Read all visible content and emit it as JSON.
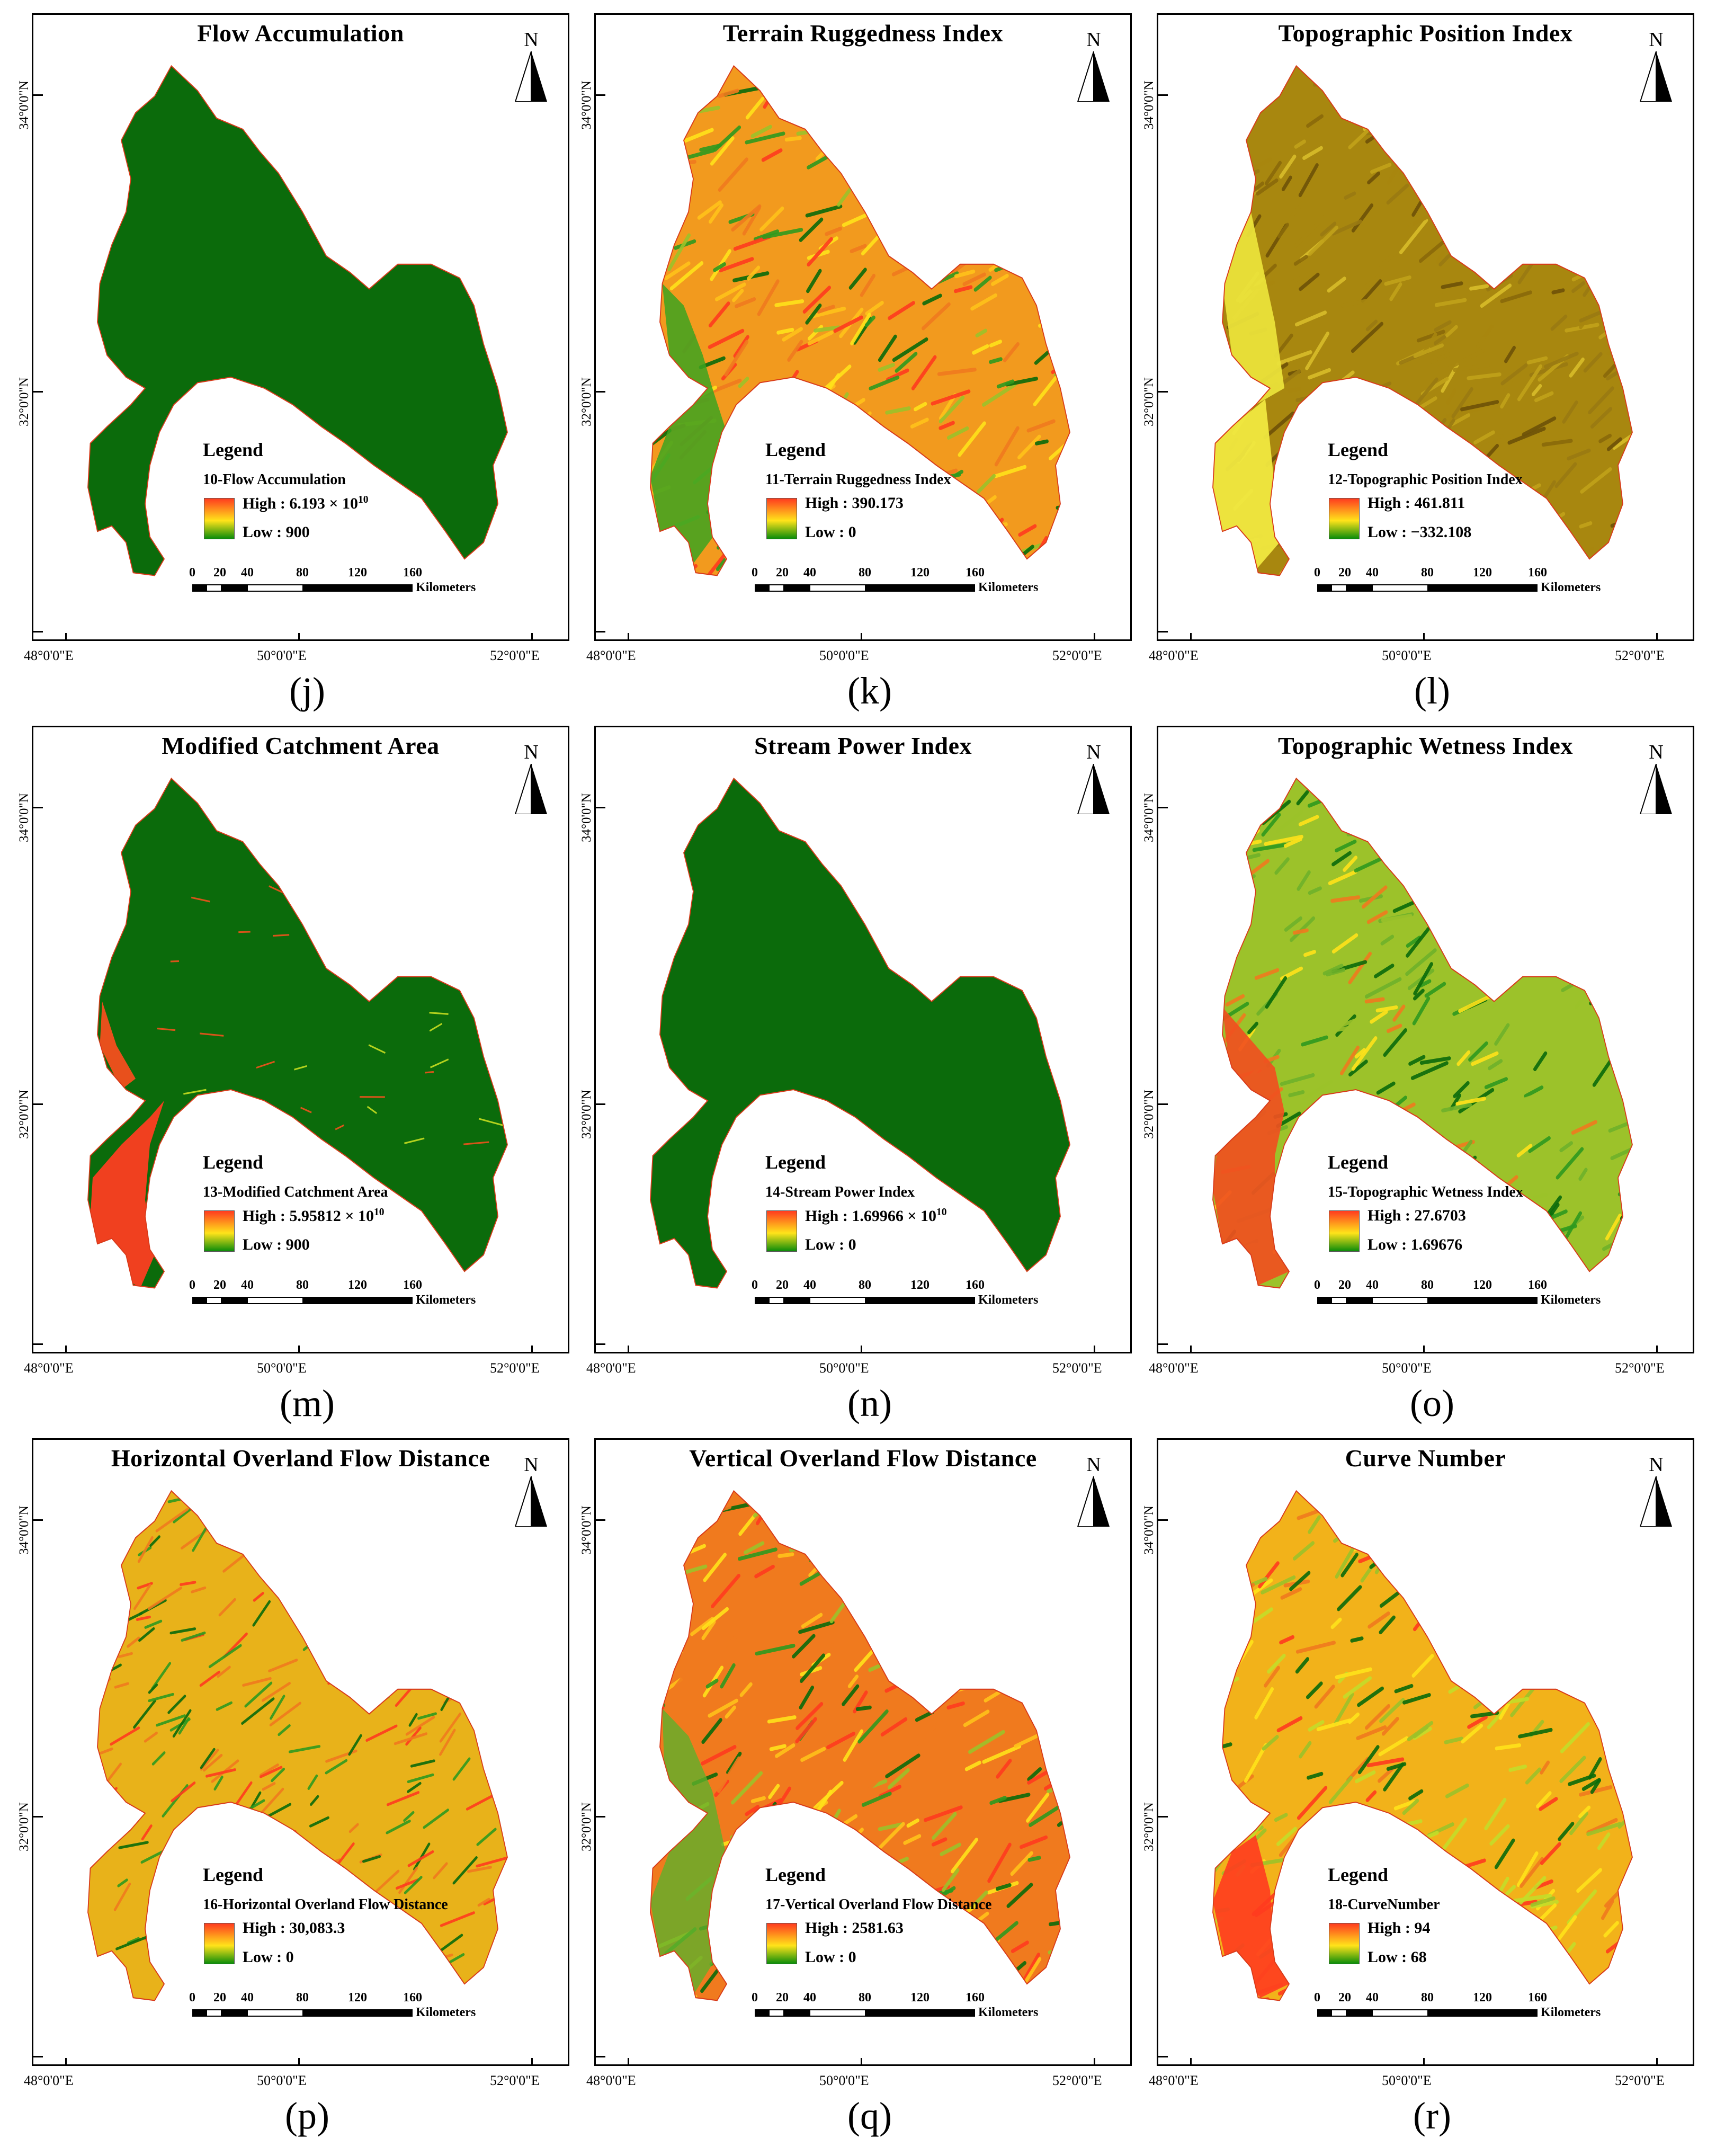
{
  "axes": {
    "lat_labels": [
      "34°0'0\"N",
      "32°0'0\"N"
    ],
    "lon_labels": [
      "48°0'0\"E",
      "50°0'0\"E",
      "52°0'0\"E"
    ]
  },
  "north_arrow": {
    "letter": "N",
    "icon": "north-arrow-icon"
  },
  "scale_bar": {
    "ticks": [
      "0",
      "20",
      "40",
      "80",
      "120",
      "160"
    ],
    "unit": "Kilometers"
  },
  "legend_title": "Legend",
  "ramp_colors": {
    "high": "#ff3b1f",
    "mid": "#ffe31a",
    "low": "#0a8c0a"
  },
  "panels": [
    {
      "id": "j",
      "title": "Flow Accumulation",
      "layer": "10-Flow Accumulation",
      "high_label": "High : ",
      "high": "6.193 × 10",
      "high_exp": "10",
      "low_label": "Low : ",
      "low": "900",
      "caption": "(j)",
      "fill": "#0b6b0b",
      "style": "flat"
    },
    {
      "id": "k",
      "title": "Terrain Ruggedness Index",
      "layer": "11-Terrain Ruggedness Index",
      "high_label": "High : ",
      "high": "390.173",
      "high_exp": "",
      "low_label": "Low : ",
      "low": "0",
      "caption": "(k)",
      "fill": "#f29a1e",
      "style": "ryg"
    },
    {
      "id": "l",
      "title": "Topographic Position Index",
      "layer": "12-Topographic Position Index",
      "high_label": "High : ",
      "high": "461.811",
      "high_exp": "",
      "low_label": "Low : ",
      "low": "−332.108",
      "caption": "(l)",
      "fill": "#a8870f",
      "style": "olive"
    },
    {
      "id": "m",
      "title": "Modified Catchment Area",
      "layer": "13-Modified Catchment Area",
      "high_label": "High : ",
      "high": "5.95812 × 10",
      "high_exp": "10",
      "low_label": "Low : ",
      "low": "900",
      "caption": "(m)",
      "fill": "#0b6b0b",
      "style": "flat-red"
    },
    {
      "id": "n",
      "title": "Stream Power Index",
      "layer": "14-Stream Power Index",
      "high_label": "High : ",
      "high": "1.69966 × 10",
      "high_exp": "10",
      "low_label": "Low : ",
      "low": "0",
      "caption": "(n)",
      "fill": "#0b6b0b",
      "style": "flat"
    },
    {
      "id": "o",
      "title": "Topographic Wetness Index",
      "layer": "15-Topographic Wetness Index",
      "high_label": "High : ",
      "high": "27.6703",
      "high_exp": "",
      "low_label": "Low : ",
      "low": "1.69676",
      "caption": "(o)",
      "fill": "#9cc22a",
      "style": "twi"
    },
    {
      "id": "p",
      "title": "Horizontal Overland Flow Distance",
      "layer": "16-Horizontal Overland Flow Distance",
      "high_label": "High : ",
      "high": "30,083.3",
      "high_exp": "",
      "low_label": "Low : ",
      "low": "0",
      "caption": "(p)",
      "fill": "#e8b21a",
      "style": "channels"
    },
    {
      "id": "q",
      "title": "Vertical Overland Flow Distance",
      "layer": "17-Vertical Overland Flow Distance",
      "high_label": "High : ",
      "high": "2581.63",
      "high_exp": "",
      "low_label": "Low : ",
      "low": "0",
      "caption": "(q)",
      "fill": "#f07a1e",
      "style": "ryg"
    },
    {
      "id": "r",
      "title": "Curve Number",
      "layer": "18-CurveNumber",
      "high_label": "High : ",
      "high": "94",
      "high_exp": "",
      "low_label": "Low : ",
      "low": "68",
      "caption": "(r)",
      "fill": "#f2b21a",
      "style": "cn"
    }
  ]
}
